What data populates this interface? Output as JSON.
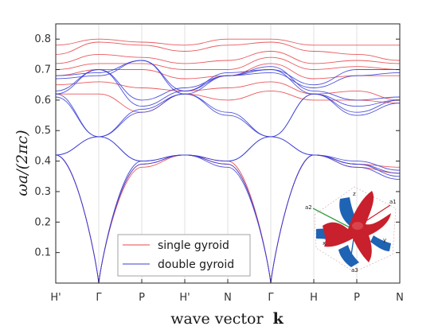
{
  "chart_data": {
    "type": "line",
    "xlabel": "wave vector k",
    "xlabel_main": "wave vector",
    "xlabel_bold": "k",
    "ylabel": "ωa/(2πc)",
    "ylim": [
      0,
      0.85
    ],
    "x_ticks": [
      "H'",
      "Γ",
      "P",
      "H'",
      "N",
      "Γ",
      "H",
      "P",
      "N"
    ],
    "y_ticks": [
      "0.1",
      "0.2",
      "0.3",
      "0.4",
      "0.5",
      "0.6",
      "0.7",
      "0.8"
    ],
    "y_tick_values": [
      0.1,
      0.2,
      0.3,
      0.4,
      0.5,
      0.6,
      0.7,
      0.8
    ],
    "legend": {
      "position": "bottom-center",
      "entries": [
        "single gyroid",
        "double gyroid"
      ]
    },
    "colors": {
      "single gyroid": "#e8474c",
      "double gyroid": "#3b3fd6"
    },
    "series": [
      {
        "name": "single gyroid",
        "group": "single",
        "x": [
          0,
          1,
          2,
          3,
          4,
          5,
          6,
          7,
          8
        ],
        "values": [
          0.42,
          0.0,
          0.38,
          0.42,
          0.39,
          0.0,
          0.42,
          0.38,
          0.36
        ]
      },
      {
        "name": "single gyroid",
        "group": "single",
        "x": [
          0,
          1,
          2,
          3,
          4,
          5,
          6,
          7,
          8
        ],
        "values": [
          0.42,
          0.0,
          0.39,
          0.42,
          0.4,
          0.0,
          0.42,
          0.39,
          0.38
        ]
      },
      {
        "name": "single gyroid",
        "group": "single",
        "x": [
          0,
          1,
          2,
          3,
          4,
          5,
          6,
          7,
          8
        ],
        "values": [
          0.62,
          0.62,
          0.56,
          0.62,
          0.6,
          0.63,
          0.6,
          0.6,
          0.59
        ]
      },
      {
        "name": "single gyroid",
        "group": "single",
        "x": [
          0,
          1,
          2,
          3,
          4,
          5,
          6,
          7,
          8
        ],
        "values": [
          0.65,
          0.66,
          0.64,
          0.63,
          0.64,
          0.66,
          0.62,
          0.63,
          0.6
        ]
      },
      {
        "name": "single gyroid",
        "group": "single",
        "x": [
          0,
          1,
          2,
          3,
          4,
          5,
          6,
          7,
          8
        ],
        "values": [
          0.68,
          0.7,
          0.7,
          0.67,
          0.68,
          0.72,
          0.67,
          0.68,
          0.68
        ]
      },
      {
        "name": "single gyroid",
        "group": "single",
        "x": [
          0,
          1,
          2,
          3,
          4,
          5,
          6,
          7,
          8
        ],
        "values": [
          0.7,
          0.72,
          0.72,
          0.7,
          0.7,
          0.74,
          0.7,
          0.71,
          0.7
        ]
      },
      {
        "name": "single gyroid",
        "group": "single",
        "x": [
          0,
          1,
          2,
          3,
          4,
          5,
          6,
          7,
          8
        ],
        "values": [
          0.72,
          0.75,
          0.74,
          0.72,
          0.73,
          0.76,
          0.72,
          0.73,
          0.72
        ]
      },
      {
        "name": "single gyroid",
        "group": "single",
        "x": [
          0,
          1,
          2,
          3,
          4,
          5,
          6,
          7,
          8
        ],
        "values": [
          0.75,
          0.79,
          0.78,
          0.76,
          0.78,
          0.79,
          0.76,
          0.75,
          0.73
        ]
      },
      {
        "name": "single gyroid",
        "group": "single",
        "x": [
          0,
          1,
          2,
          3,
          4,
          5,
          6,
          7,
          8
        ],
        "values": [
          0.78,
          0.8,
          0.79,
          0.78,
          0.8,
          0.8,
          0.78,
          0.78,
          0.78
        ]
      },
      {
        "name": "double gyroid",
        "group": "double",
        "x": [
          0,
          1,
          2,
          3,
          4,
          5,
          6,
          7,
          8
        ],
        "values": [
          0.42,
          0.0,
          0.39,
          0.42,
          0.38,
          0.0,
          0.42,
          0.38,
          0.34
        ]
      },
      {
        "name": "double gyroid",
        "group": "double",
        "x": [
          0,
          1,
          2,
          3,
          4,
          5,
          6,
          7,
          8
        ],
        "values": [
          0.42,
          0.0,
          0.4,
          0.42,
          0.39,
          0.0,
          0.42,
          0.39,
          0.35
        ]
      },
      {
        "name": "double gyroid",
        "group": "double",
        "x": [
          0,
          1,
          2,
          3,
          4,
          5,
          6,
          7,
          8
        ],
        "values": [
          0.42,
          0.48,
          0.4,
          0.42,
          0.4,
          0.48,
          0.42,
          0.39,
          0.36
        ]
      },
      {
        "name": "double gyroid",
        "group": "double",
        "x": [
          0,
          1,
          2,
          3,
          4,
          5,
          6,
          7,
          8
        ],
        "values": [
          0.42,
          0.48,
          0.4,
          0.42,
          0.4,
          0.48,
          0.42,
          0.4,
          0.37
        ]
      },
      {
        "name": "double gyroid",
        "group": "double",
        "x": [
          0,
          1,
          2,
          3,
          4,
          5,
          6,
          7,
          8
        ],
        "values": [
          0.61,
          0.48,
          0.56,
          0.62,
          0.55,
          0.48,
          0.62,
          0.55,
          0.59
        ]
      },
      {
        "name": "double gyroid",
        "group": "double",
        "x": [
          0,
          1,
          2,
          3,
          4,
          5,
          6,
          7,
          8
        ],
        "values": [
          0.62,
          0.48,
          0.57,
          0.62,
          0.56,
          0.48,
          0.62,
          0.56,
          0.6
        ]
      },
      {
        "name": "double gyroid",
        "group": "double",
        "x": [
          0,
          1,
          2,
          3,
          4,
          5,
          6,
          7,
          8
        ],
        "values": [
          0.62,
          0.7,
          0.58,
          0.63,
          0.68,
          0.7,
          0.62,
          0.58,
          0.6
        ]
      },
      {
        "name": "double gyroid",
        "group": "double",
        "x": [
          0,
          1,
          2,
          3,
          4,
          5,
          6,
          7,
          8
        ],
        "values": [
          0.63,
          0.7,
          0.6,
          0.64,
          0.68,
          0.71,
          0.63,
          0.6,
          0.61
        ]
      },
      {
        "name": "double gyroid",
        "group": "double",
        "x": [
          0,
          1,
          2,
          3,
          4,
          5,
          6,
          7,
          8
        ],
        "values": [
          0.67,
          0.68,
          0.73,
          0.62,
          0.68,
          0.69,
          0.64,
          0.68,
          0.69
        ]
      },
      {
        "name": "double gyroid",
        "group": "double",
        "x": [
          0,
          1,
          2,
          3,
          4,
          5,
          6,
          7,
          8
        ],
        "values": [
          0.68,
          0.69,
          0.73,
          0.63,
          0.69,
          0.7,
          0.65,
          0.7,
          0.7
        ]
      }
    ],
    "inset": {
      "description_labels": [
        "a2",
        "a1",
        "a3",
        "z",
        "x",
        "y"
      ],
      "colors": {
        "red_network": "#c8202c",
        "blue_network": "#1f63b4"
      }
    }
  }
}
